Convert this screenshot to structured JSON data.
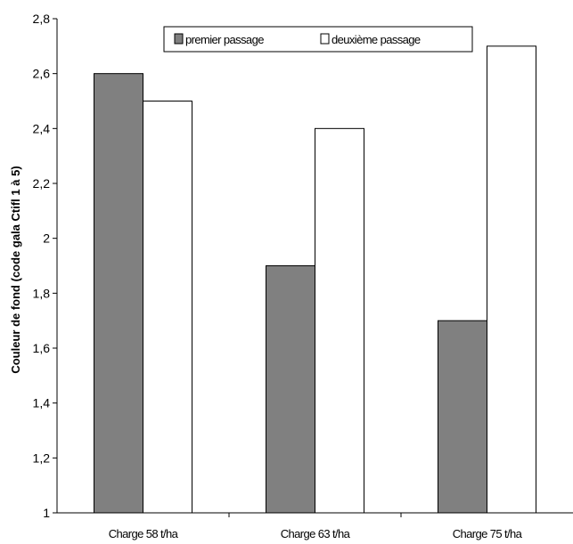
{
  "chart_data": {
    "type": "bar",
    "categories": [
      "Charge 58 t/ha",
      "Charge 63 t/ha",
      "Charge 75 t/ha"
    ],
    "series": [
      {
        "name": "premier passage",
        "values": [
          2.6,
          1.9,
          1.7
        ],
        "color": "#808080"
      },
      {
        "name": "deuxième passage",
        "values": [
          2.5,
          2.4,
          2.7
        ],
        "color": "#ffffff"
      }
    ],
    "ylabel": "Couleur de fond (code gala Ctifl 1 à 5)",
    "ylim": [
      1,
      2.8
    ],
    "yticks": [
      "1",
      "1,2",
      "1,4",
      "1,6",
      "1,8",
      "2",
      "2,2",
      "2,4",
      "2,6",
      "2,8"
    ],
    "grid": false,
    "legend_position": "top"
  }
}
